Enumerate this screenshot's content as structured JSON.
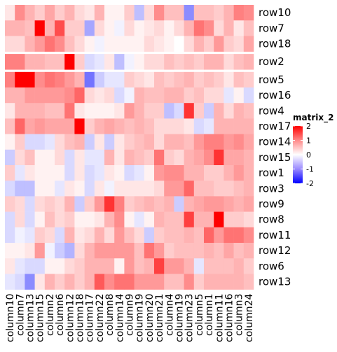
{
  "chart_data": {
    "type": "heatmap",
    "legend": {
      "title": "matrix_2",
      "ticks": [
        2,
        1,
        0,
        -1,
        -2
      ]
    },
    "colors": {
      "high": "#ff0000",
      "mid": "#ffffff",
      "low": "#0000ff"
    },
    "value_range": [
      -2,
      2
    ],
    "columns": [
      "column10",
      "column7",
      "column13",
      "column15",
      "column2",
      "column6",
      "column12",
      "column18",
      "column17",
      "column22",
      "column8",
      "column14",
      "column9",
      "column19",
      "column20",
      "column21",
      "column4",
      "column19",
      "column23",
      "column5",
      "column1",
      "column11",
      "column16",
      "column3",
      "column24"
    ],
    "row_groups": [
      [
        "row10",
        "row7",
        "row18"
      ],
      [
        "row2"
      ],
      [
        "row5",
        "row16",
        "row4",
        "row17",
        "row14",
        "row15",
        "row1",
        "row3",
        "row9",
        "row8",
        "row11",
        "row12",
        "row6",
        "row13"
      ]
    ],
    "rows": [
      {
        "name": "row10",
        "values": [
          0.2,
          0.9,
          0.6,
          0.4,
          0.7,
          0.4,
          0.6,
          0.3,
          0.2,
          0.6,
          0.1,
          0.1,
          0.4,
          -0.5,
          0.3,
          0.9,
          0.5,
          0.5,
          -0.9,
          0.5,
          0.5,
          0.4,
          0.6,
          1.0,
          0.9
        ]
      },
      {
        "name": "row7",
        "values": [
          0.6,
          0.6,
          0.5,
          2.0,
          0.6,
          1.4,
          0.4,
          0.4,
          -0.7,
          0.3,
          0.1,
          -0.1,
          0.3,
          0.1,
          0.2,
          0.3,
          0.1,
          0.3,
          0.6,
          1.1,
          0.9,
          0.3,
          0.6,
          0.2,
          0.5
        ]
      },
      {
        "name": "row18",
        "values": [
          0.3,
          0.3,
          0.6,
          0.8,
          1.1,
          0.9,
          0.5,
          0.3,
          0.1,
          -0.1,
          0.1,
          0.1,
          0.1,
          0.1,
          0.3,
          0.2,
          0.1,
          0.0,
          0.3,
          0.6,
          0.4,
          0.8,
          0.4,
          0.3,
          0.7
        ]
      },
      {
        "name": "row2",
        "values": [
          1.0,
          1.0,
          0.6,
          0.6,
          0.5,
          0.5,
          2.0,
          0.4,
          -0.3,
          -0.2,
          0.2,
          -0.5,
          -0.1,
          0.1,
          0.3,
          0.3,
          0.5,
          0.4,
          0.5,
          0.4,
          0.6,
          0.6,
          0.3,
          0.5,
          0.6
        ]
      },
      {
        "name": "row5",
        "values": [
          1.0,
          2.0,
          2.0,
          0.9,
          1.1,
          1.0,
          0.8,
          0.6,
          -1.1,
          -0.4,
          -0.2,
          -0.2,
          0.4,
          0.3,
          0.2,
          0.5,
          0.4,
          0.5,
          0.6,
          0.4,
          0.5,
          0.4,
          0.2,
          0.5,
          0.4
        ]
      },
      {
        "name": "row16",
        "values": [
          0.6,
          0.6,
          0.8,
          0.8,
          0.8,
          0.8,
          0.9,
          1.2,
          0.3,
          0.2,
          0.3,
          -0.3,
          -0.1,
          0.6,
          0.5,
          0.5,
          0.6,
          0.6,
          0.4,
          0.5,
          0.3,
          0.3,
          -0.2,
          0.1,
          -0.3
        ]
      },
      {
        "name": "row4",
        "values": [
          0.2,
          0.6,
          0.6,
          0.6,
          0.5,
          0.5,
          1.1,
          0.2,
          0.1,
          0.1,
          0.1,
          0.2,
          0.8,
          0.6,
          0.4,
          0.4,
          -0.5,
          -0.3,
          1.6,
          0.4,
          -0.4,
          0.6,
          0.3,
          0.6,
          0.5
        ]
      },
      {
        "name": "row17",
        "values": [
          0.5,
          1.2,
          0.7,
          0.8,
          0.7,
          0.7,
          0.7,
          2.0,
          0.4,
          0.6,
          0.7,
          0.6,
          0.5,
          0.6,
          0.5,
          0.3,
          0.3,
          0.3,
          0.2,
          -0.3,
          -0.2,
          0.6,
          0.6,
          0.6,
          0.6
        ]
      },
      {
        "name": "row14",
        "values": [
          0.1,
          0.4,
          -0.3,
          -0.3,
          -0.2,
          0.3,
          0.5,
          0.6,
          -0.4,
          0.2,
          -0.4,
          0.2,
          0.4,
          0.5,
          0.6,
          0.3,
          0.6,
          0.6,
          0.5,
          0.8,
          1.0,
          1.0,
          0.8,
          0.9,
          0.7
        ]
      },
      {
        "name": "row15",
        "values": [
          -0.4,
          0.3,
          0.5,
          0.1,
          0.1,
          0.3,
          -0.3,
          0.2,
          -0.2,
          -0.2,
          0.6,
          0.2,
          0.6,
          0.5,
          0.4,
          1.1,
          0.4,
          0.3,
          0.6,
          0.7,
          0.9,
          1.6,
          0.7,
          0.7,
          0.6
        ]
      },
      {
        "name": "row1",
        "values": [
          0.4,
          -0.2,
          0.2,
          0.1,
          0.1,
          0.1,
          -0.3,
          0.2,
          -0.3,
          -0.2,
          0.2,
          0.1,
          -0.3,
          -0.2,
          0.1,
          0.8,
          0.9,
          0.9,
          0.6,
          0.6,
          0.4,
          0.4,
          0.6,
          0.8,
          0.6
        ]
      },
      {
        "name": "row3",
        "values": [
          -0.3,
          -0.5,
          -0.5,
          0.1,
          0.1,
          -0.2,
          0.2,
          0.1,
          -0.3,
          0.2,
          -0.1,
          0.2,
          0.2,
          0.2,
          0.2,
          0.3,
          0.8,
          0.8,
          1.2,
          0.5,
          0.5,
          0.4,
          0.4,
          0.5,
          0.6
        ]
      },
      {
        "name": "row9",
        "values": [
          0.4,
          0.3,
          -0.3,
          0.3,
          0.4,
          0.3,
          0.6,
          -0.4,
          0.4,
          0.8,
          1.6,
          1.0,
          0.4,
          0.5,
          0.6,
          0.5,
          0.6,
          -0.4,
          0.6,
          0.7,
          0.8,
          0.8,
          0.7,
          0.6,
          0.7
        ]
      },
      {
        "name": "row8",
        "values": [
          -0.3,
          0.3,
          -0.3,
          0.1,
          0.5,
          0.3,
          0.4,
          0.1,
          0.1,
          0.2,
          0.6,
          0.9,
          0.1,
          -0.2,
          0.1,
          0.6,
          0.5,
          0.5,
          1.5,
          0.6,
          0.6,
          2.0,
          0.4,
          0.4,
          0.3
        ]
      },
      {
        "name": "row11",
        "values": [
          -0.3,
          -0.1,
          -0.2,
          0.4,
          0.3,
          -0.3,
          0.6,
          0.2,
          0.3,
          0.6,
          0.3,
          0.8,
          0.5,
          0.3,
          -0.4,
          0.4,
          0.5,
          0.5,
          0.6,
          0.5,
          1.2,
          0.8,
          1.1,
          1.1,
          0.9
        ]
      },
      {
        "name": "row12",
        "values": [
          0.1,
          0.1,
          0.2,
          0.8,
          -0.1,
          -0.4,
          -0.6,
          0.3,
          0.6,
          0.8,
          0.8,
          0.8,
          0.8,
          0.5,
          1.1,
          0.8,
          0.4,
          0.5,
          0.5,
          0.5,
          0.6,
          0.5,
          0.7,
          0.5,
          0.6
        ]
      },
      {
        "name": "row6",
        "values": [
          0.2,
          -0.2,
          -0.3,
          -0.3,
          0.1,
          0.1,
          0.3,
          0.4,
          0.6,
          0.6,
          0.6,
          0.1,
          0.8,
          0.5,
          0.6,
          1.5,
          0.8,
          0.8,
          0.6,
          -0.2,
          0.5,
          0.5,
          0.5,
          0.6,
          0.4
        ]
      },
      {
        "name": "row13",
        "values": [
          -0.2,
          -0.3,
          -0.9,
          0.2,
          0.6,
          0.4,
          0.6,
          0.4,
          0.6,
          1.3,
          0.9,
          1.1,
          1.1,
          0.8,
          0.8,
          0.8,
          0.5,
          0.5,
          0.9,
          0.4,
          0.6,
          0.6,
          0.6,
          0.6,
          0.5
        ]
      }
    ]
  }
}
